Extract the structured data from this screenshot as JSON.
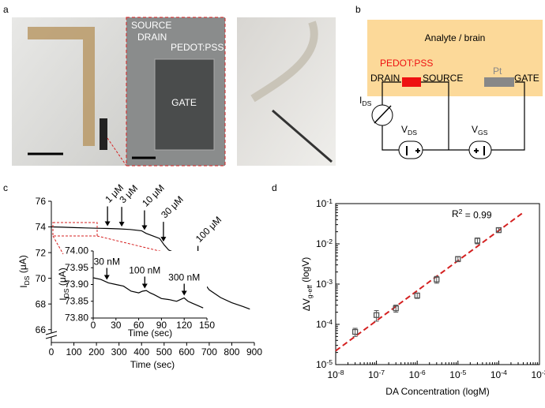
{
  "panel_labels": [
    "a",
    "b",
    "c",
    "d"
  ],
  "photos": {
    "source": "SOURCE",
    "drain": "DRAIN",
    "pedot": "PEDOT:PSS",
    "gate": "GATE"
  },
  "circuit": {
    "analyte": "Analyte / brain",
    "pedot": "PEDOT:PSS",
    "drain": "DRAIN",
    "source": "SOURCE",
    "pt": "Pt",
    "gate": "GATE",
    "ids": {
      "main": "I",
      "sub": "DS"
    },
    "vds": {
      "main": "V",
      "sub": "DS"
    },
    "vgs": {
      "main": "V",
      "sub": "GS"
    }
  },
  "chart_data": [
    {
      "type": "line",
      "color": "#000000",
      "x": [
        0,
        50,
        100,
        150,
        200,
        250,
        300,
        350,
        400,
        420,
        450,
        480,
        500,
        520,
        560,
        600,
        640,
        655,
        670,
        700,
        750,
        800,
        850,
        880
      ],
      "values": [
        74.0,
        73.98,
        73.95,
        73.92,
        73.9,
        73.88,
        73.85,
        73.8,
        73.7,
        73.5,
        73.3,
        73.1,
        72.6,
        72.2,
        71.9,
        71.6,
        71.2,
        70.6,
        69.8,
        69.1,
        68.5,
        68.1,
        67.8,
        67.6
      ],
      "xlim": [
        0,
        900
      ],
      "xticks": [
        0,
        100,
        200,
        300,
        400,
        500,
        600,
        700,
        800,
        900
      ],
      "ylim": [
        65,
        76
      ],
      "yticks": [
        66,
        68,
        70,
        72,
        74,
        76
      ],
      "x_label": {
        "main": "Time (sec)"
      },
      "y_label": {
        "main": "I",
        "sub": "DS",
        "tail": " (μA)"
      },
      "annotations": [
        {
          "x": 249,
          "text": "1 μM"
        },
        {
          "x": 312,
          "text": "3 μM"
        },
        {
          "x": 413,
          "text": "10 μM"
        },
        {
          "x": 497,
          "text": "30 μM"
        },
        {
          "x": 650,
          "text": "100 μM"
        }
      ]
    },
    {
      "type": "line",
      "color": "#000000",
      "x": [
        0,
        10,
        20,
        30,
        40,
        50,
        60,
        65,
        70,
        75,
        80,
        90,
        100,
        110,
        115,
        120,
        125,
        130,
        140,
        145
      ],
      "values": [
        73.92,
        73.915,
        73.905,
        73.9,
        73.895,
        73.88,
        73.875,
        73.88,
        73.882,
        73.875,
        73.87,
        73.858,
        73.855,
        73.85,
        73.855,
        73.86,
        73.85,
        73.845,
        73.835,
        73.83
      ],
      "xlim": [
        0,
        150
      ],
      "xticks": [
        0,
        30,
        60,
        90,
        120,
        150
      ],
      "ylim": [
        73.8,
        74.0
      ],
      "yticks": [
        {
          "value": 73.8,
          "label": "73.80"
        },
        {
          "value": 73.85,
          "label": "73.85"
        },
        {
          "value": 73.9,
          "label": "73.90"
        },
        {
          "value": 73.95,
          "label": "73.95"
        },
        {
          "value": 74.0,
          "label": "74.00"
        }
      ],
      "x_label": {
        "main": "Time (sec)"
      },
      "y_label": {
        "main": "I",
        "sub": "DS",
        "tail": " (μA)"
      },
      "annotations": [
        {
          "x": 18,
          "text": "30 nM"
        },
        {
          "x": 68,
          "text": "100 nM"
        },
        {
          "x": 120,
          "text": "300 nM"
        }
      ]
    },
    {
      "type": "scatter",
      "log_x": true,
      "log_y": true,
      "x": [
        3e-08,
        1e-07,
        3e-07,
        1e-06,
        3e-06,
        1e-05,
        3e-05,
        0.0001
      ],
      "values": [
        6.5e-05,
        0.00017,
        0.00025,
        0.00052,
        0.0013,
        0.0042,
        0.012,
        0.022
      ],
      "error": [
        1.5e-05,
        5e-05,
        5e-05,
        8e-05,
        0.00025,
        0.0006,
        0.002,
        0.003
      ],
      "color": "#555555",
      "fit": {
        "x": [
          1e-08,
          0.0004
        ],
        "values": [
          2.2e-05,
          0.06
        ],
        "color": "#d42020"
      },
      "xlim": [
        1e-08,
        0.001
      ],
      "xticks": [
        {
          "value": 1e-08,
          "label": {
            "main": "10",
            "sup": "-8"
          }
        },
        {
          "value": 1e-07,
          "label": {
            "main": "10",
            "sup": "-7"
          }
        },
        {
          "value": 1e-06,
          "label": {
            "main": "10",
            "sup": "-6"
          }
        },
        {
          "value": 1e-05,
          "label": {
            "main": "10",
            "sup": "-5"
          }
        },
        {
          "value": 0.0001,
          "label": {
            "main": "10",
            "sup": "-4"
          }
        },
        {
          "value": 0.001,
          "label": {
            "main": "10",
            "sup": "-3"
          }
        }
      ],
      "ylim": [
        1e-05,
        0.1
      ],
      "yticks": [
        {
          "value": 1e-05,
          "label": {
            "main": "10",
            "sup": "-5"
          }
        },
        {
          "value": 0.0001,
          "label": {
            "main": "10",
            "sup": "-4"
          }
        },
        {
          "value": 0.001,
          "label": {
            "main": "10",
            "sup": "-3"
          }
        },
        {
          "value": 0.01,
          "label": {
            "main": "10",
            "sup": "-2"
          }
        },
        {
          "value": 0.1,
          "label": {
            "main": "10",
            "sup": "-1"
          }
        }
      ],
      "x_label": {
        "main": "DA Concentration (logM)"
      },
      "y_label": {
        "main": "ΔV",
        "sub": "g-eff",
        "tail": " (logV)"
      },
      "annotation": {
        "main": "R",
        "sup": "2",
        "tail": " = 0.99"
      }
    }
  ]
}
